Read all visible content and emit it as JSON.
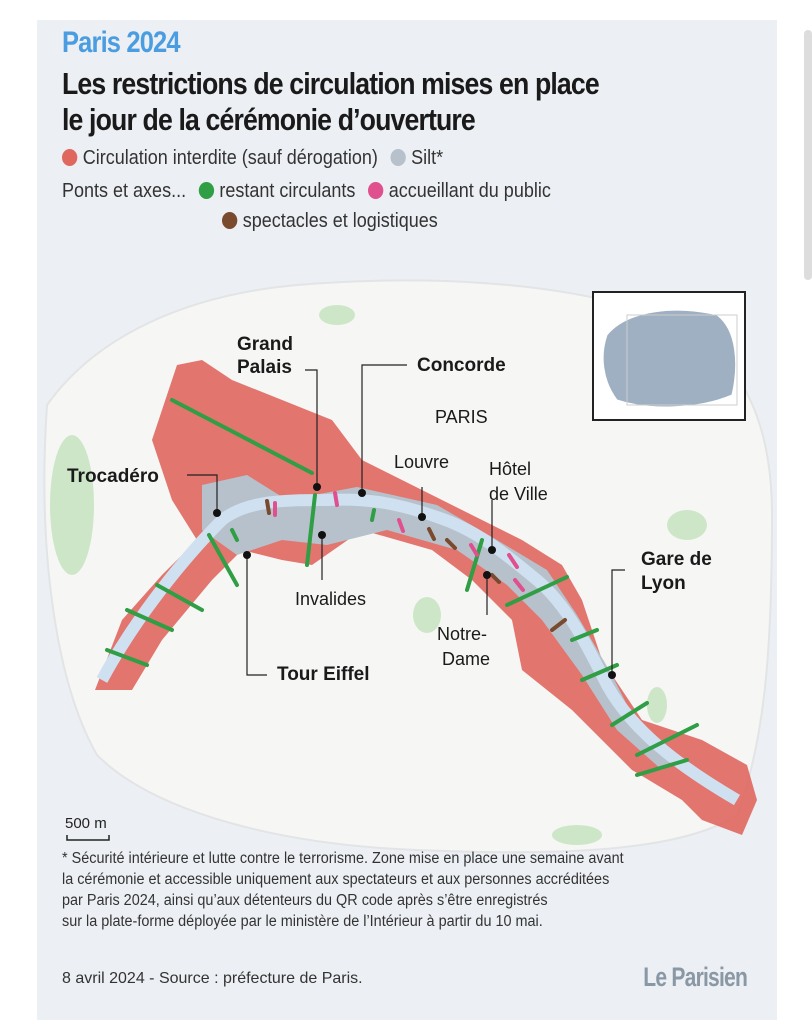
{
  "header": {
    "kicker": "Paris 2024",
    "title_line1": "Les restrictions de circulation mises en place",
    "title_line2": "le jour de la cérémonie d’ouverture"
  },
  "legend": {
    "zone_forbidden": {
      "label": "Circulation interdite (sauf dérogation)",
      "color": "#e0675e"
    },
    "zone_silt": {
      "label": "Silt*",
      "color": "#b7c1cb"
    },
    "bridges_prefix": "Ponts et axes...",
    "bridges_open": {
      "label": "restant circulants",
      "color": "#2f9e44"
    },
    "bridges_public": {
      "label": "accueillant du public",
      "color": "#e0508f"
    },
    "bridges_shows": {
      "label": "spectacles et logistiques",
      "color": "#7a4a2e"
    }
  },
  "map": {
    "city_label": "PARIS",
    "places": {
      "grand_palais_1": "Grand",
      "grand_palais_2": "Palais",
      "concorde": "Concorde",
      "trocadero": "Trocadéro",
      "louvre": "Louvre",
      "hotel_de_ville_1": "Hôtel",
      "hotel_de_ville_2": "de Ville",
      "gare_de_lyon_1": "Gare de",
      "gare_de_lyon_2": "Lyon",
      "invalides": "Invalides",
      "notre_dame_1": "Notre-",
      "notre_dame_2": "Dame",
      "tour_eiffel": "Tour Eiffel"
    },
    "scale_label": "500 m",
    "river_color": "#cfe0f0"
  },
  "footer": {
    "note_line1": "* Sécurité intérieure et lutte contre le terrorisme. Zone mise en place une semaine avant",
    "note_line2": "la cérémonie et accessible uniquement aux spectateurs et aux personnes accréditées",
    "note_line3": "par Paris 2024, ainsi qu’aux détenteurs du QR code après s’être enregistrés",
    "note_line4": "sur la plate-forme déployée par le ministère de l’Intérieur à partir du 10 mai.",
    "source": "8 avril 2024 - Source : préfecture de Paris.",
    "logo": "Le Parisien"
  }
}
